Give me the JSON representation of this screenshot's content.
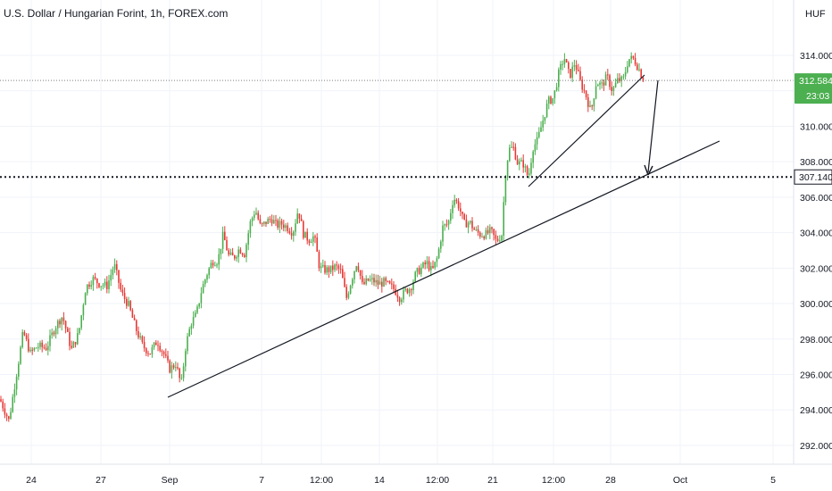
{
  "header": {
    "title": "U.S. Dollar / Hungarian Forint, 1h, FOREX.com"
  },
  "price_axis": {
    "currency": "HUF",
    "last_price": "312.584",
    "countdown": "23:03",
    "level_label": "307.140"
  },
  "colors": {
    "up": "#26a69a",
    "down": "#ef5350",
    "up_candle": "#4caf50",
    "down_candle": "#e53935",
    "last_price_bg": "#4caf50",
    "level_bg": "#ffffff",
    "grid": "#f0f3fa",
    "line": "#131722"
  },
  "chart_data": {
    "type": "candlestick",
    "title": "U.S. Dollar / Hungarian Forint, 1h, FOREX.com",
    "ylabel": "HUF",
    "ylim": [
      291.0,
      316.5
    ],
    "y_ticks": [
      292.0,
      294.0,
      296.0,
      298.0,
      300.0,
      302.0,
      304.0,
      306.0,
      308.0,
      310.0,
      312.0,
      314.0
    ],
    "x_ticks": [
      "24",
      "27",
      "Sep",
      "7",
      "12:00",
      "14",
      "12:00",
      "21",
      "12:00",
      "28",
      "Oct",
      "5"
    ],
    "grid": true,
    "last_price": 312.584,
    "horizontal_level": 307.14,
    "path_points": [
      [
        0,
        294.6
      ],
      [
        10,
        293.4
      ],
      [
        20,
        296.5
      ],
      [
        26,
        298.4
      ],
      [
        34,
        297.2
      ],
      [
        42,
        297.6
      ],
      [
        52,
        297.5
      ],
      [
        62,
        298.7
      ],
      [
        70,
        299.3
      ],
      [
        80,
        297.4
      ],
      [
        88,
        298.3
      ],
      [
        96,
        300.9
      ],
      [
        104,
        301.4
      ],
      [
        112,
        301.1
      ],
      [
        120,
        301.0
      ],
      [
        128,
        302.2
      ],
      [
        136,
        300.6
      ],
      [
        144,
        299.9
      ],
      [
        152,
        298.6
      ],
      [
        160,
        297.6
      ],
      [
        168,
        297.2
      ],
      [
        176,
        297.9
      ],
      [
        184,
        297.1
      ],
      [
        190,
        296.3
      ],
      [
        197,
        296.6
      ],
      [
        203,
        295.4
      ],
      [
        208,
        297.6
      ],
      [
        214,
        298.9
      ],
      [
        220,
        299.4
      ],
      [
        226,
        300.8
      ],
      [
        232,
        301.7
      ],
      [
        238,
        302.4
      ],
      [
        244,
        302.4
      ],
      [
        250,
        303.9
      ],
      [
        256,
        302.7
      ],
      [
        262,
        302.6
      ],
      [
        268,
        303.1
      ],
      [
        274,
        302.8
      ],
      [
        280,
        304.5
      ],
      [
        286,
        305.3
      ],
      [
        292,
        304.3
      ],
      [
        298,
        304.6
      ],
      [
        304,
        304.8
      ],
      [
        310,
        304.4
      ],
      [
        316,
        304.5
      ],
      [
        322,
        304.3
      ],
      [
        328,
        304.0
      ],
      [
        334,
        305.3
      ],
      [
        340,
        303.9
      ],
      [
        346,
        303.6
      ],
      [
        352,
        303.8
      ],
      [
        358,
        302.0
      ],
      [
        364,
        301.9
      ],
      [
        370,
        301.9
      ],
      [
        376,
        302.1
      ],
      [
        382,
        301.8
      ],
      [
        388,
        300.3
      ],
      [
        394,
        301.4
      ],
      [
        400,
        302.4
      ],
      [
        406,
        301.0
      ],
      [
        412,
        301.3
      ],
      [
        418,
        301.3
      ],
      [
        424,
        301.1
      ],
      [
        430,
        301.2
      ],
      [
        436,
        301.0
      ],
      [
        442,
        300.8
      ],
      [
        448,
        300.3
      ],
      [
        454,
        300.7
      ],
      [
        460,
        300.9
      ],
      [
        466,
        301.7
      ],
      [
        472,
        302.0
      ],
      [
        478,
        302.3
      ],
      [
        484,
        301.8
      ],
      [
        490,
        302.6
      ],
      [
        496,
        304.3
      ],
      [
        502,
        304.5
      ],
      [
        508,
        306.0
      ],
      [
        514,
        305.5
      ],
      [
        520,
        304.5
      ],
      [
        526,
        304.6
      ],
      [
        532,
        304.1
      ],
      [
        538,
        303.9
      ],
      [
        544,
        303.9
      ],
      [
        550,
        304.1
      ],
      [
        556,
        303.5
      ],
      [
        562,
        303.9
      ],
      [
        566,
        307.2
      ],
      [
        570,
        308.7
      ],
      [
        575,
        308.8
      ],
      [
        580,
        307.9
      ],
      [
        586,
        307.9
      ],
      [
        592,
        307.1
      ],
      [
        597,
        308.8
      ],
      [
        602,
        309.2
      ],
      [
        608,
        310.3
      ],
      [
        614,
        311.4
      ],
      [
        620,
        311.6
      ],
      [
        626,
        313.0
      ],
      [
        632,
        313.9
      ],
      [
        638,
        312.8
      ],
      [
        644,
        313.6
      ],
      [
        650,
        312.5
      ],
      [
        656,
        311.8
      ],
      [
        662,
        310.8
      ],
      [
        668,
        312.5
      ],
      [
        674,
        312.3
      ],
      [
        680,
        312.8
      ],
      [
        686,
        312.0
      ],
      [
        692,
        312.6
      ],
      [
        698,
        312.6
      ],
      [
        704,
        313.8
      ],
      [
        710,
        313.8
      ],
      [
        716,
        313.2
      ],
      [
        721,
        312.6
      ]
    ],
    "annotations": [
      {
        "type": "trendline",
        "from": [
          "Aug 31",
          294.7
        ],
        "to": [
          "Oct 3",
          309.1
        ]
      },
      {
        "type": "trendline",
        "from": [
          "Sep 22",
          306.6
        ],
        "to": [
          "Sep 29",
          312.9
        ]
      },
      {
        "type": "arrow",
        "from": [
          "Sep 30",
          312.5
        ],
        "to": [
          "Sep 30",
          307.2
        ]
      }
    ]
  }
}
